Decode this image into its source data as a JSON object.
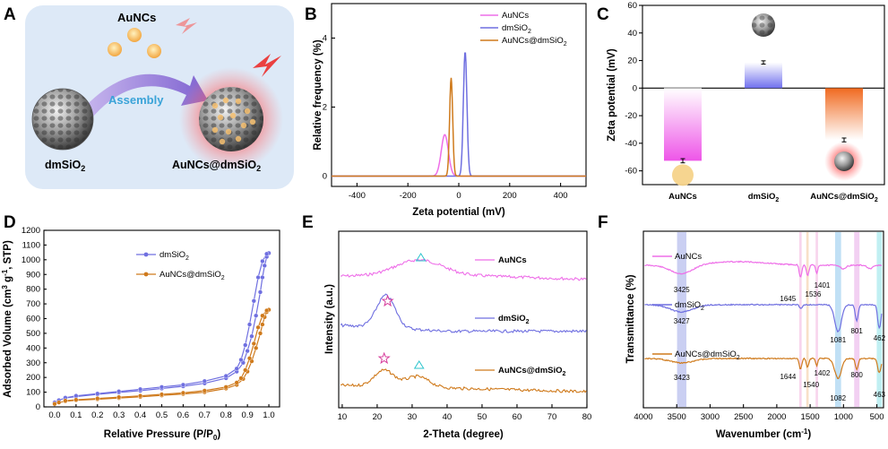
{
  "panels": {
    "A": {
      "letter": "A",
      "aunc_label": "AuNCs",
      "assembly_label": "Assembly",
      "dmsio2_label": "dmSiO",
      "dmsio2_sub": "2",
      "composite_label": "AuNCs@dmSiO",
      "composite_sub": "2"
    },
    "B": {
      "letter": "B"
    },
    "C": {
      "letter": "C"
    },
    "D": {
      "letter": "D"
    },
    "E": {
      "letter": "E"
    },
    "F": {
      "letter": "F"
    }
  },
  "colors": {
    "aunc": "#ee6ee8",
    "dmsio2": "#6f6fe0",
    "composite": "#cf7a1c",
    "bg_a": "#dde9f7",
    "arrow": "#9a84d8",
    "assembly_text": "#3aa3d8"
  },
  "chart_data": [
    {
      "id": "B",
      "type": "line",
      "title": "",
      "xlabel": "Zeta potential (mV)",
      "ylabel": "Relative frequency (%)",
      "xlim": [
        -500,
        500
      ],
      "ylim": [
        -0.3,
        5
      ],
      "xticks": [
        "-400",
        "-200",
        "0",
        "200",
        "400"
      ],
      "xtick_values": [
        -400,
        -200,
        0,
        200,
        400
      ],
      "yticks": [
        "0",
        "2",
        "4"
      ],
      "ytick_values": [
        0,
        2,
        4
      ],
      "legend_position": "top-right",
      "series": [
        {
          "name": "AuNCs",
          "sub": "",
          "color_key": "aunc",
          "baseline": 0,
          "peaks": [
            {
              "center": -55,
              "height": 1.2,
              "width": 14
            }
          ]
        },
        {
          "name": "dmSiO",
          "sub": "2",
          "color_key": "dmsio2",
          "baseline": 0,
          "peaks": [
            {
              "center": 25,
              "height": 3.6,
              "width": 7
            }
          ]
        },
        {
          "name": "AuNCs@dmSiO",
          "sub": "2",
          "color_key": "composite",
          "baseline": 0,
          "peaks": [
            {
              "center": -30,
              "height": 2.85,
              "width": 6
            }
          ]
        }
      ]
    },
    {
      "id": "C",
      "type": "bar",
      "title": "",
      "xlabel": "",
      "ylabel": "Zeta potential (mV)",
      "ylim": [
        -70,
        60
      ],
      "yticks": [
        "60",
        "40",
        "20",
        "0",
        "-20",
        "-40",
        "-60"
      ],
      "ytick_values": [
        60,
        40,
        20,
        0,
        -20,
        -40,
        -60
      ],
      "categories": [
        "AuNCs",
        "dmSiO",
        "AuNCs@dmSiO"
      ],
      "category_subs": [
        "",
        "2",
        "2"
      ],
      "values": [
        -52.7,
        18.6,
        -37.6
      ],
      "errors": [
        1.5,
        1.2,
        1.4
      ],
      "color_keys": [
        "aunc",
        "dmsio2",
        "composite"
      ]
    },
    {
      "id": "D",
      "type": "line",
      "title": "",
      "xlabel": "Relative Pressure (P/P",
      "xlabel_sub": "0",
      "xlabel_end": ")",
      "ylabel": "Adsorbed Volume (cm",
      "xlim": [
        -0.05,
        1.05
      ],
      "ylim": [
        0,
        1200
      ],
      "xticks": [
        "0.0",
        "0.1",
        "0.2",
        "0.3",
        "0.4",
        "0.5",
        "0.6",
        "0.7",
        "0.8",
        "0.9",
        "1.0"
      ],
      "xtick_values": [
        0,
        0.1,
        0.2,
        0.3,
        0.4,
        0.5,
        0.6,
        0.7,
        0.8,
        0.9,
        1.0
      ],
      "yticks": [
        "0",
        "100",
        "200",
        "300",
        "400",
        "500",
        "600",
        "700",
        "800",
        "900",
        "1000",
        "1100",
        "1200"
      ],
      "ytick_values": [
        0,
        100,
        200,
        300,
        400,
        500,
        600,
        700,
        800,
        900,
        1000,
        1100,
        1200
      ],
      "legend_position": "top-left",
      "series": [
        {
          "name": "dmSiO",
          "sub": "2",
          "color_key": "dmsio2",
          "x": [
            0.0,
            0.02,
            0.05,
            0.1,
            0.2,
            0.3,
            0.4,
            0.5,
            0.6,
            0.7,
            0.8,
            0.85,
            0.88,
            0.9,
            0.92,
            0.94,
            0.96,
            0.97,
            0.98,
            0.99,
            1.0
          ],
          "y": [
            30,
            45,
            60,
            70,
            85,
            98,
            110,
            125,
            140,
            160,
            195,
            240,
            300,
            380,
            480,
            620,
            780,
            880,
            960,
            1020,
            1045
          ],
          "x_desorption": [
            1.0,
            0.99,
            0.97,
            0.95,
            0.93,
            0.91,
            0.89,
            0.87,
            0.85,
            0.8,
            0.7,
            0.6,
            0.5,
            0.4,
            0.3,
            0.2,
            0.1,
            0.05
          ],
          "y_desorption": [
            1045,
            1040,
            990,
            880,
            720,
            560,
            420,
            320,
            260,
            210,
            175,
            150,
            135,
            120,
            105,
            90,
            75,
            62
          ]
        },
        {
          "name": "AuNCs@dmSiO",
          "sub": "2",
          "color_key": "composite",
          "x": [
            0.0,
            0.02,
            0.05,
            0.1,
            0.2,
            0.3,
            0.4,
            0.5,
            0.6,
            0.7,
            0.8,
            0.85,
            0.88,
            0.9,
            0.92,
            0.94,
            0.96,
            0.97,
            0.98,
            0.99,
            1.0
          ],
          "y": [
            20,
            30,
            38,
            45,
            52,
            60,
            68,
            78,
            88,
            100,
            125,
            150,
            190,
            240,
            310,
            400,
            500,
            560,
            610,
            645,
            660
          ],
          "x_desorption": [
            1.0,
            0.99,
            0.97,
            0.95,
            0.93,
            0.91,
            0.89,
            0.87,
            0.85,
            0.8,
            0.7,
            0.6,
            0.5,
            0.4,
            0.3,
            0.2,
            0.1,
            0.05
          ],
          "y_desorption": [
            660,
            655,
            620,
            540,
            430,
            330,
            250,
            195,
            165,
            135,
            110,
            95,
            85,
            75,
            66,
            57,
            48,
            42
          ]
        }
      ]
    },
    {
      "id": "E",
      "type": "line",
      "title": "",
      "xlabel": "2-Theta (degree)",
      "ylabel": "Intensity (a.u.)",
      "xlim": [
        9,
        80
      ],
      "xticks": [
        "10",
        "20",
        "30",
        "40",
        "50",
        "60",
        "70",
        "80"
      ],
      "xtick_values": [
        10,
        20,
        30,
        40,
        50,
        60,
        70,
        80
      ],
      "series": [
        {
          "name": "AuNCs",
          "sub": "",
          "color_key": "aunc"
        },
        {
          "name": "dmSiO",
          "sub": "2",
          "color_key": "dmsio2"
        },
        {
          "name": "AuNCs@dmSiO",
          "sub": "2",
          "color_key": "composite"
        }
      ]
    },
    {
      "id": "F",
      "type": "line",
      "title": "",
      "xlabel": "Wavenumber (cm",
      "xlabel_sup": "-1",
      "xlabel_end": ")",
      "ylabel": "Transmittance (%)",
      "xlim": [
        4000,
        400
      ],
      "xticks": [
        "4000",
        "3500",
        "3000",
        "2500",
        "2000",
        "1500",
        "1000",
        "500"
      ],
      "xtick_values": [
        4000,
        3500,
        3000,
        2500,
        2000,
        1500,
        1000,
        500
      ],
      "series": [
        {
          "name": "AuNCs",
          "sub": "",
          "color_key": "aunc",
          "peak_labels": [
            "3425",
            "1645",
            "1536",
            "1401"
          ]
        },
        {
          "name": "dmSiO",
          "sub": "2",
          "color_key": "dmsio2",
          "peak_labels": [
            "3427",
            "1081",
            "801",
            "462"
          ]
        },
        {
          "name": "AuNCs@dmSiO",
          "sub": "2",
          "color_key": "composite",
          "peak_labels": [
            "3423",
            "1644",
            "1540",
            "1402",
            "1082",
            "800",
            "463"
          ]
        }
      ]
    }
  ]
}
